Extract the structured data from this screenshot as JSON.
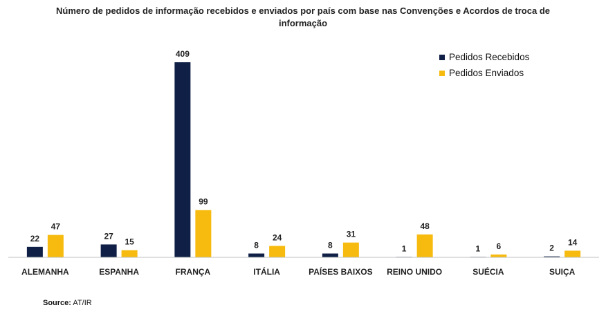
{
  "chart_data": {
    "type": "bar",
    "title_line1": "Número de pedidos de informação recebidos e enviados por país com base nas Convenções e Acordos de troca de",
    "title_line2": "informação",
    "categories": [
      "ALEMANHA",
      "ESPANHA",
      "FRANÇA",
      "ITÁLIA",
      "PAÍSES BAIXOS",
      "REINO UNIDO",
      "SUÉCIA",
      "SUIÇA"
    ],
    "series": [
      {
        "name": "Pedidos Recebidos",
        "color": "#0f1f45",
        "values": [
          22,
          27,
          409,
          8,
          8,
          1,
          1,
          2
        ]
      },
      {
        "name": "Pedidos Enviados",
        "color": "#f6bb0e",
        "values": [
          47,
          15,
          99,
          24,
          31,
          48,
          6,
          14
        ]
      }
    ],
    "ylim": [
      0,
      409
    ],
    "grid": false,
    "legend_position": "top-right"
  },
  "source": {
    "label": "Source:",
    "text": "AT/IR"
  }
}
